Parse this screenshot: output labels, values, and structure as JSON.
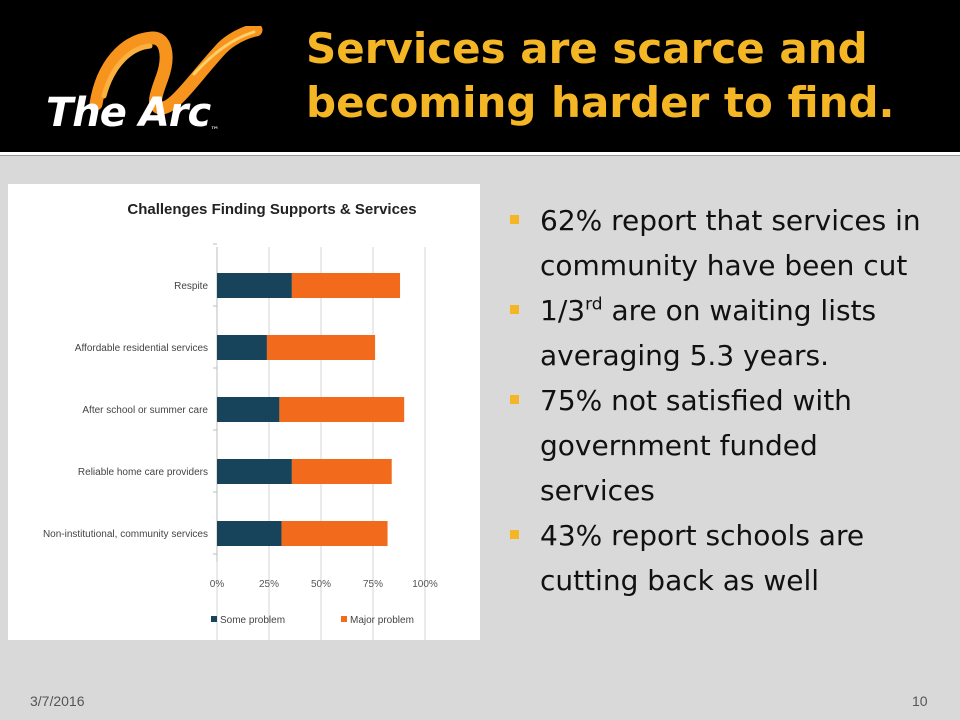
{
  "logo": {
    "text": "The Arc",
    "tm": "™"
  },
  "title": {
    "line1": "Services are scarce and",
    "line2": "becoming harder to find."
  },
  "bullets": {
    "b1": "62% report that services in community have been cut",
    "b2_prefix": "1/3",
    "b2_sup": "rd",
    "b2_suffix": " are on waiting lists averaging 5.3 years.",
    "b3": "75% not satisfied with government funded services",
    "b4": "43% report schools are cutting back as well"
  },
  "footer": {
    "date": "3/7/2016",
    "page": "10"
  },
  "colors": {
    "accent": "#f5b625",
    "some_problem": "#17445a",
    "major_problem": "#f26b1d"
  },
  "chart_data": {
    "type": "bar",
    "orientation": "horizontal",
    "stacked": true,
    "title": "Challenges Finding Supports & Services",
    "categories": [
      "Respite",
      "Affordable residential services",
      "After school or summer care",
      "Reliable home care providers",
      "Non-institutional, community services"
    ],
    "series": [
      {
        "name": "Some problem",
        "values": [
          36,
          24,
          30,
          36,
          31
        ]
      },
      {
        "name": "Major problem",
        "values": [
          52,
          52,
          60,
          48,
          51
        ]
      }
    ],
    "xlim": [
      0,
      100
    ],
    "x_ticks": [
      "0%",
      "25%",
      "50%",
      "75%",
      "100%"
    ],
    "grid": true,
    "legend": "bottom"
  }
}
